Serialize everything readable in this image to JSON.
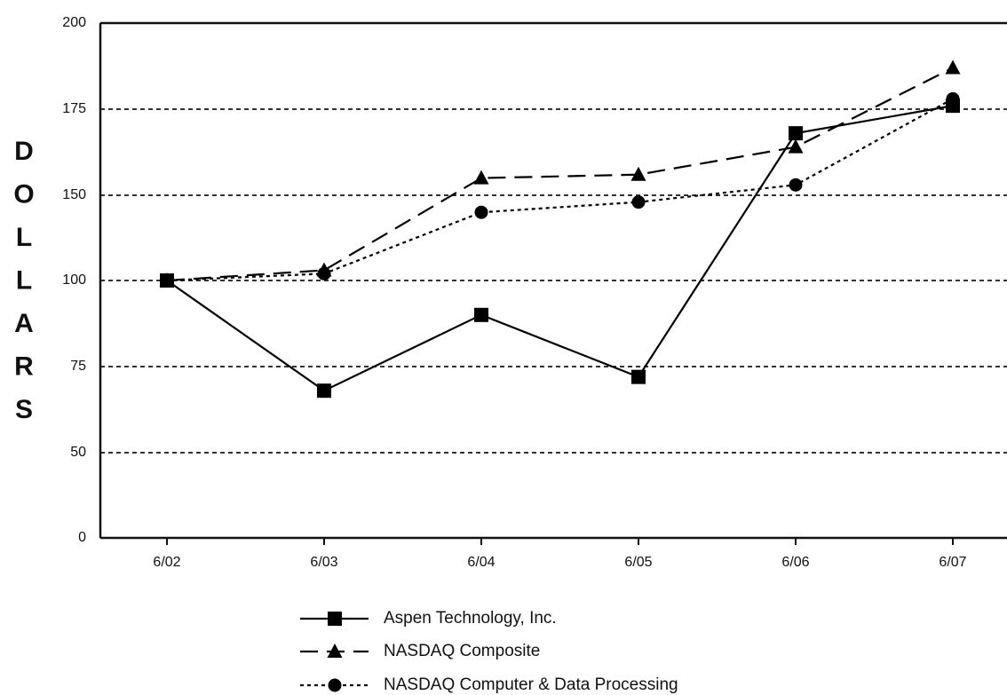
{
  "chart_data": {
    "type": "line",
    "title": "",
    "xlabel": "",
    "ylabel": "DOLLARS",
    "categories": [
      "6/02",
      "6/03",
      "6/04",
      "6/05",
      "6/06",
      "6/07"
    ],
    "y_ticks": [
      "0",
      "50",
      "75",
      "100",
      "150",
      "175",
      "200"
    ],
    "gridlines_at": [
      50,
      75,
      100,
      150,
      175
    ],
    "grid": true,
    "legend_position": "bottom",
    "series": [
      {
        "name": "Aspen Technology, Inc.",
        "marker": "square",
        "line_style": "solid",
        "values": [
          100,
          68,
          90,
          72,
          168,
          176
        ]
      },
      {
        "name": "NASDAQ Composite",
        "marker": "triangle",
        "line_style": "dashed",
        "values": [
          100,
          106,
          155,
          156,
          164,
          187
        ]
      },
      {
        "name": "NASDAQ Computer & Data Processing",
        "marker": "circle",
        "line_style": "dotted",
        "values": [
          100,
          104,
          140,
          146,
          153,
          178
        ]
      }
    ]
  }
}
